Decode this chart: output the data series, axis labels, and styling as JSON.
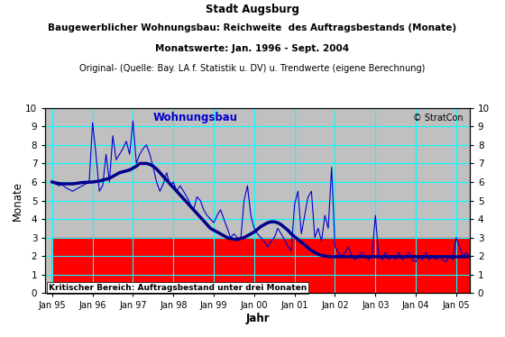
{
  "title_line1": "Stadt Augsburg",
  "title_line2": "Baugewerblicher Wohnungsbau: Reichweite  des Auftragsbestands (Monate)",
  "title_line3": "Monatswerte: Jan. 1996 - Sept. 2004",
  "title_line4": "Original- (Quelle: Bay. LA f. Statistik u. DV) u. Trendwerte (eigene Berechnung)",
  "xlabel": "Jahr",
  "ylabel": "Monate",
  "ylim": [
    0,
    10
  ],
  "background_color": "#c0c0c0",
  "critical_color": "#ff0000",
  "critical_threshold": 3,
  "critical_label": "Kritischer Bereich: Auftragsbestand unter drei Monaten",
  "legend_label": "Wohnungsbau",
  "watermark": "© StratCon",
  "line_color": "#0000cd",
  "trend_color": "#00008b",
  "grid_color": "#00ffff",
  "xtick_labels": [
    "Jan 95",
    "Jan 96",
    "Jan 97",
    "Jan 98",
    "Jan 99",
    "Jan 00",
    "Jan 01",
    "Jan 02",
    "Jan 03",
    "Jan 04",
    "Jan 05"
  ],
  "xtick_positions": [
    -12,
    0,
    12,
    24,
    36,
    48,
    60,
    72,
    84,
    96,
    108
  ],
  "trend_y": [
    6.0,
    5.95,
    5.92,
    5.9,
    5.9,
    5.9,
    5.9,
    5.92,
    5.95,
    5.97,
    5.98,
    5.99,
    6.0,
    6.02,
    6.05,
    6.1,
    6.15,
    6.2,
    6.3,
    6.4,
    6.5,
    6.55,
    6.6,
    6.65,
    6.75,
    6.85,
    7.0,
    7.0,
    7.0,
    6.95,
    6.85,
    6.7,
    6.5,
    6.3,
    6.1,
    5.9,
    5.7,
    5.5,
    5.3,
    5.1,
    4.9,
    4.7,
    4.5,
    4.3,
    4.1,
    3.9,
    3.7,
    3.5,
    3.4,
    3.3,
    3.2,
    3.1,
    3.0,
    2.95,
    2.9,
    2.9,
    2.95,
    3.0,
    3.1,
    3.2,
    3.3,
    3.45,
    3.6,
    3.7,
    3.8,
    3.85,
    3.85,
    3.8,
    3.7,
    3.55,
    3.4,
    3.2,
    3.05,
    2.9,
    2.75,
    2.6,
    2.45,
    2.3,
    2.2,
    2.1,
    2.05,
    2.0,
    1.98,
    1.97,
    1.97,
    1.97,
    1.97,
    1.97,
    1.97,
    1.97,
    1.97,
    1.97,
    1.97,
    1.97,
    1.97,
    1.97,
    1.97,
    1.97,
    1.97,
    1.97,
    1.97,
    1.97,
    1.97,
    1.97,
    1.97,
    1.97,
    1.97,
    1.97,
    1.97,
    1.97,
    1.97,
    1.97,
    1.97,
    1.97,
    1.97,
    1.97,
    1.97,
    1.97,
    1.97,
    1.97,
    1.97,
    1.97,
    1.97,
    1.97,
    1.97,
    1.97,
    1.97
  ],
  "orig_y": [
    6.0,
    5.9,
    5.8,
    5.85,
    5.7,
    5.6,
    5.5,
    5.6,
    5.7,
    5.8,
    5.9,
    6.0,
    9.2,
    7.5,
    5.5,
    5.8,
    7.5,
    6.0,
    8.5,
    7.2,
    7.5,
    7.8,
    8.2,
    7.5,
    9.3,
    7.0,
    7.5,
    7.8,
    8.0,
    7.5,
    6.8,
    6.0,
    5.5,
    5.9,
    6.5,
    5.8,
    6.0,
    5.5,
    5.8,
    5.5,
    5.2,
    4.8,
    4.5,
    5.2,
    5.0,
    4.5,
    4.2,
    4.0,
    3.8,
    4.2,
    4.5,
    4.0,
    3.5,
    3.0,
    3.2,
    3.0,
    2.9,
    5.0,
    5.8,
    4.2,
    3.5,
    3.2,
    3.0,
    2.8,
    2.5,
    2.8,
    3.0,
    3.5,
    3.2,
    2.9,
    2.5,
    2.3,
    4.8,
    5.5,
    3.2,
    4.2,
    5.2,
    5.5,
    3.0,
    3.5,
    2.8,
    4.2,
    3.5,
    6.8,
    2.5,
    2.2,
    2.0,
    2.2,
    2.5,
    2.0,
    1.8,
    2.0,
    2.2,
    2.0,
    1.8,
    2.0,
    4.2,
    2.0,
    1.8,
    2.2,
    1.8,
    2.0,
    1.8,
    2.2,
    1.8,
    2.0,
    2.2,
    1.8,
    1.7,
    2.0,
    1.8,
    2.2,
    1.8,
    2.0,
    1.8,
    2.0,
    1.8,
    1.7,
    2.0,
    1.8,
    3.0,
    2.5,
    2.0,
    2.2,
    2.0,
    2.0,
    2.0
  ]
}
